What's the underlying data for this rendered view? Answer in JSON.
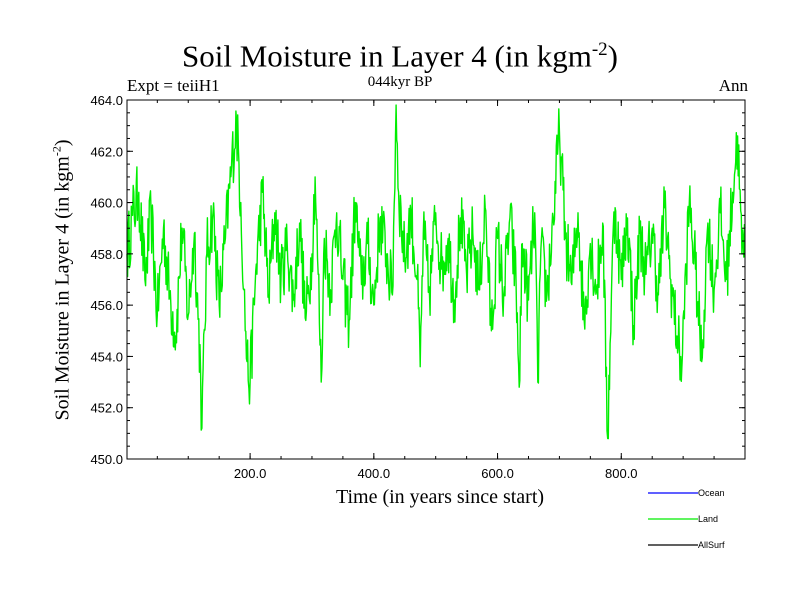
{
  "chart_data": {
    "type": "line",
    "title_main": "Soil Moisture in Layer 4 (in kgm",
    "title_exp": "-2",
    "title_close": ")",
    "subtitle": "044kyr BP",
    "left_label": "Expt = teiiH1",
    "right_label": "Ann",
    "xlabel": "Time (in years since start)",
    "ylabel_main": "Soil Moisture in Layer 4 (in kgm",
    "ylabel_exp": "-2",
    "ylabel_close": ")",
    "xlim": [
      1,
      1000
    ],
    "ylim": [
      450.0,
      464.0
    ],
    "xticks": [
      200,
      400,
      600,
      800
    ],
    "xtick_labels": [
      "200.0",
      "400.0",
      "600.0",
      "800.0"
    ],
    "yticks": [
      450,
      452,
      454,
      456,
      458,
      460,
      462,
      464
    ],
    "ytick_labels": [
      "450.0",
      "452.0",
      "454.0",
      "456.0",
      "458.0",
      "460.0",
      "462.0",
      "464.0"
    ],
    "legend_position": "bottom-right, below plot",
    "series": [
      {
        "name": "Ocean",
        "color": "#0000ff",
        "values": []
      },
      {
        "name": "Land",
        "color": "#00ee00",
        "values": [
          [
            1,
            458.0
          ],
          [
            10,
            459.5
          ],
          [
            20,
            460.4
          ],
          [
            30,
            457.0
          ],
          [
            40,
            459.6
          ],
          [
            50,
            455.6
          ],
          [
            60,
            459.0
          ],
          [
            70,
            456.4
          ],
          [
            80,
            454.8
          ],
          [
            90,
            459.0
          ],
          [
            100,
            455.6
          ],
          [
            110,
            458.8
          ],
          [
            120,
            453.4
          ],
          [
            122,
            451.2
          ],
          [
            130,
            458.0
          ],
          [
            140,
            459.6
          ],
          [
            150,
            456.0
          ],
          [
            160,
            458.6
          ],
          [
            170,
            461.4
          ],
          [
            178,
            463.2
          ],
          [
            185,
            460.0
          ],
          [
            190,
            456.6
          ],
          [
            195,
            453.8
          ],
          [
            200,
            453.0
          ],
          [
            210,
            457.6
          ],
          [
            220,
            460.4
          ],
          [
            230,
            456.4
          ],
          [
            240,
            459.6
          ],
          [
            250,
            457.0
          ],
          [
            260,
            458.4
          ],
          [
            270,
            456.2
          ],
          [
            280,
            459.2
          ],
          [
            290,
            455.4
          ],
          [
            300,
            458.0
          ],
          [
            305,
            461.0
          ],
          [
            310,
            457.2
          ],
          [
            315,
            453.0
          ],
          [
            320,
            458.6
          ],
          [
            330,
            456.6
          ],
          [
            340,
            459.6
          ],
          [
            350,
            457.0
          ],
          [
            360,
            455.4
          ],
          [
            370,
            460.0
          ],
          [
            380,
            456.8
          ],
          [
            390,
            458.4
          ],
          [
            400,
            456.0
          ],
          [
            410,
            459.4
          ],
          [
            420,
            458.0
          ],
          [
            430,
            456.4
          ],
          [
            436,
            463.8
          ],
          [
            440,
            460.4
          ],
          [
            450,
            457.8
          ],
          [
            460,
            459.6
          ],
          [
            470,
            457.0
          ],
          [
            475,
            453.6
          ],
          [
            480,
            458.8
          ],
          [
            490,
            456.4
          ],
          [
            500,
            459.6
          ],
          [
            510,
            457.4
          ],
          [
            520,
            458.6
          ],
          [
            530,
            456.2
          ],
          [
            540,
            459.4
          ],
          [
            550,
            457.2
          ],
          [
            560,
            458.8
          ],
          [
            570,
            456.6
          ],
          [
            580,
            459.8
          ],
          [
            590,
            455.0
          ],
          [
            600,
            458.6
          ],
          [
            610,
            456.4
          ],
          [
            620,
            459.4
          ],
          [
            630,
            456.8
          ],
          [
            635,
            452.8
          ],
          [
            640,
            458.4
          ],
          [
            650,
            456.2
          ],
          [
            660,
            459.6
          ],
          [
            665,
            453.0
          ],
          [
            670,
            458.2
          ],
          [
            680,
            456.4
          ],
          [
            690,
            459.4
          ],
          [
            700,
            462.8
          ],
          [
            710,
            458.6
          ],
          [
            720,
            456.8
          ],
          [
            730,
            459.6
          ],
          [
            740,
            455.4
          ],
          [
            750,
            458.4
          ],
          [
            760,
            456.6
          ],
          [
            770,
            459.2
          ],
          [
            778,
            450.8
          ],
          [
            785,
            457.4
          ],
          [
            790,
            459.8
          ],
          [
            800,
            457.0
          ],
          [
            810,
            459.4
          ],
          [
            820,
            455.2
          ],
          [
            830,
            458.8
          ],
          [
            840,
            457.2
          ],
          [
            850,
            459.0
          ],
          [
            860,
            456.4
          ],
          [
            870,
            459.8
          ],
          [
            880,
            457.0
          ],
          [
            890,
            454.8
          ],
          [
            898,
            453.6
          ],
          [
            905,
            457.6
          ],
          [
            910,
            460.0
          ],
          [
            920,
            457.4
          ],
          [
            930,
            453.8
          ],
          [
            940,
            459.2
          ],
          [
            950,
            456.6
          ],
          [
            960,
            459.6
          ],
          [
            970,
            457.0
          ],
          [
            980,
            460.4
          ],
          [
            988,
            462.6
          ],
          [
            995,
            458.0
          ],
          [
            1000,
            459.0
          ]
        ]
      },
      {
        "name": "AllSurf",
        "color": "#000000",
        "values": []
      }
    ]
  }
}
